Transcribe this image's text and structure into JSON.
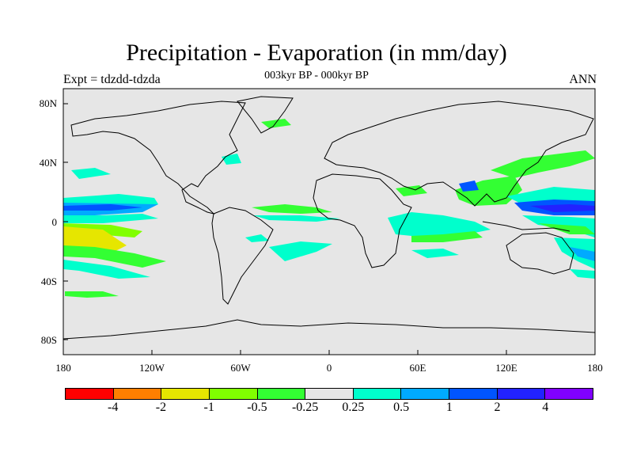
{
  "title": "Precipitation - Evaporation (in mm/day)",
  "subtitle": "003kyr BP - 000kyr BP",
  "left_label": "Expt = tdzdd-tdzda",
  "right_label": "ANN",
  "y_ticks": [
    "80N",
    "40N",
    "0",
    "40S",
    "80S"
  ],
  "x_ticks": [
    "180",
    "120W",
    "60W",
    "0",
    "60E",
    "120E",
    "180"
  ],
  "colorbar": {
    "colors": [
      "#ff0000",
      "#ff7f00",
      "#e6e600",
      "#80ff00",
      "#33ff33",
      "#e6e6e6",
      "#00ffcc",
      "#00aaff",
      "#0055ff",
      "#2222ff",
      "#8000ff"
    ],
    "labels": [
      "-4",
      "-2",
      "-1",
      "-0.5",
      "-0.25",
      "0.25",
      "0.5",
      "1",
      "2",
      "4"
    ]
  },
  "map_colors": {
    "background": "#e6e6e6",
    "coast": "#000000"
  }
}
